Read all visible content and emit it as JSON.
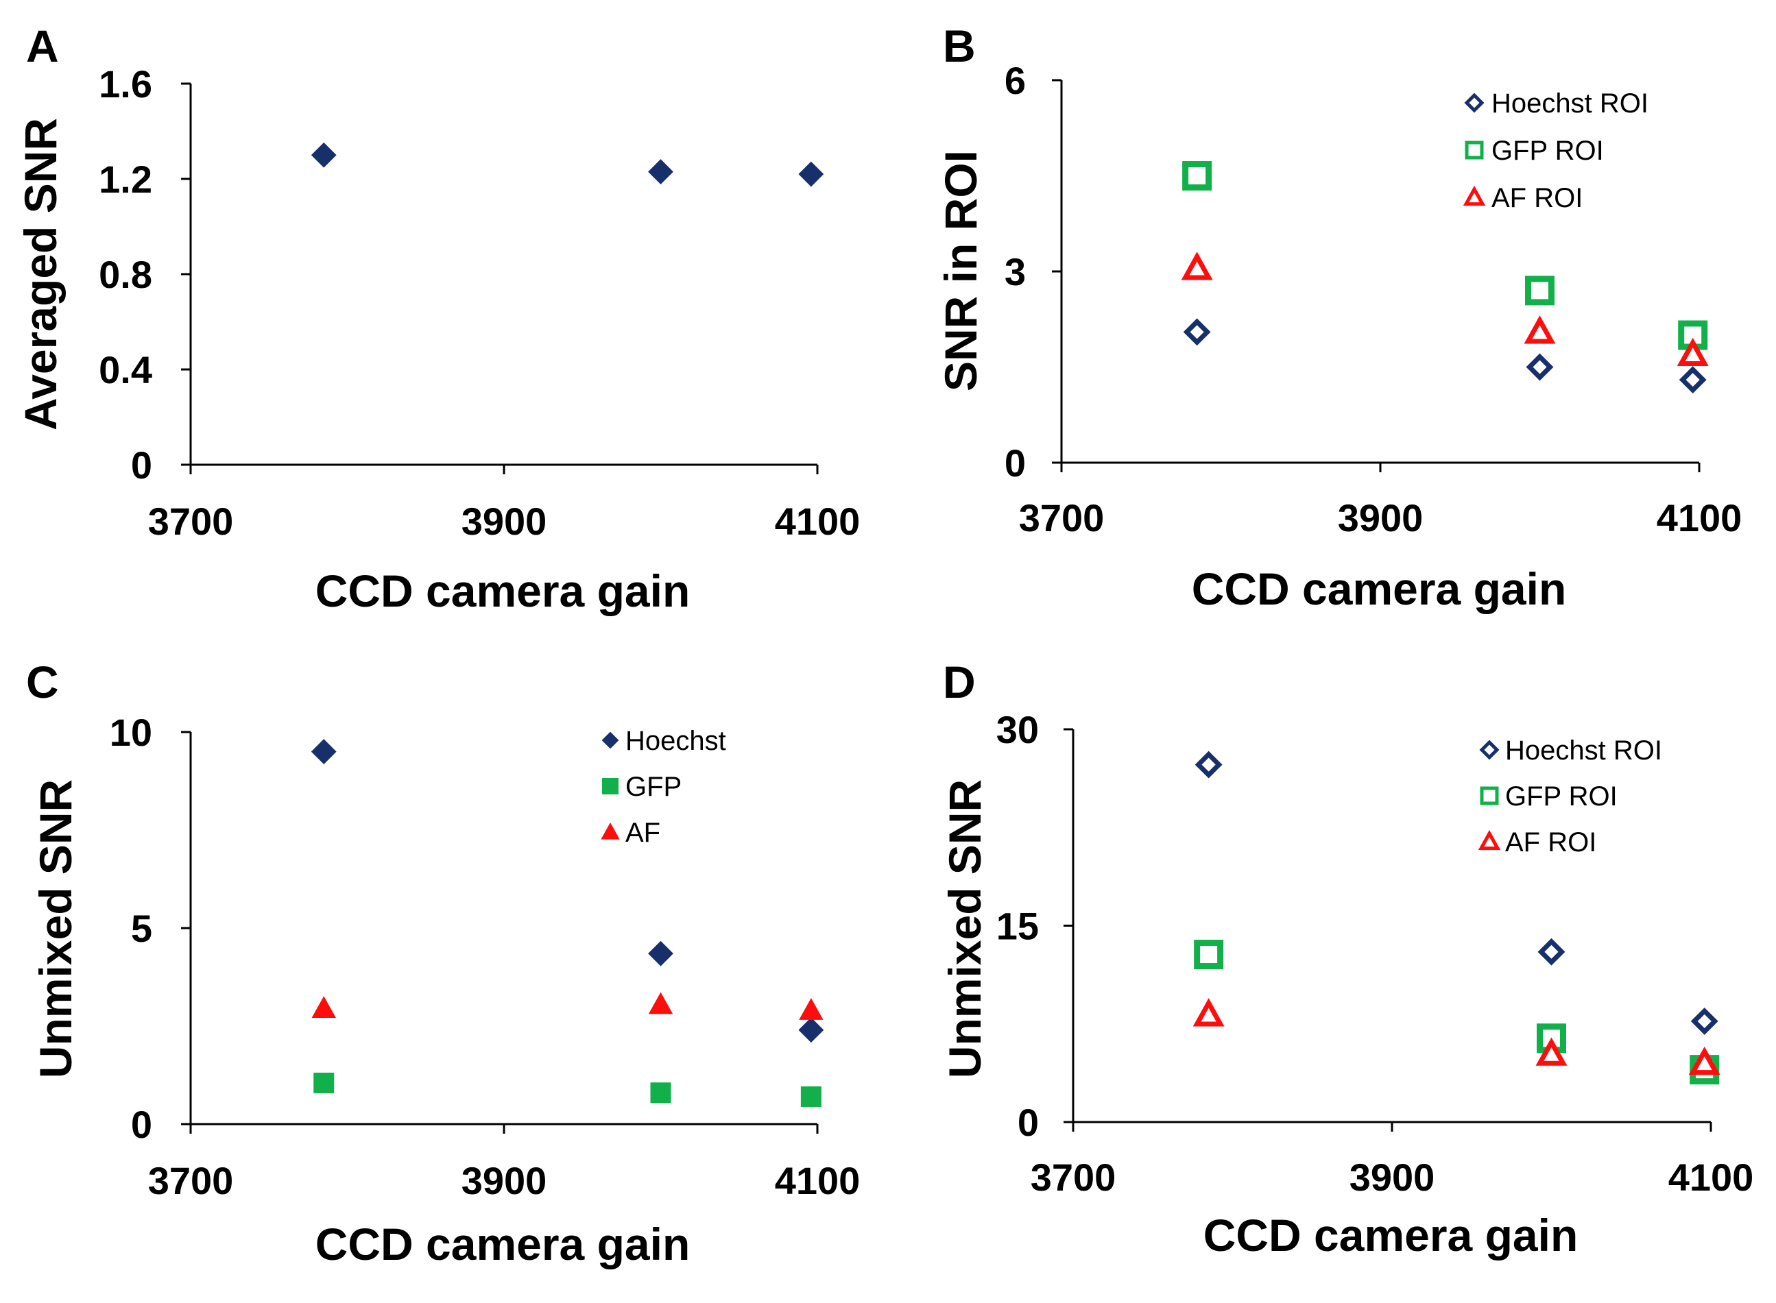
{
  "colors": {
    "hoechst": "#17306b",
    "gfp": "#12b04a",
    "af": "#ff0d0d",
    "axis": "#000000"
  },
  "chart_data": [
    {
      "type": "scatter",
      "panel": "A",
      "title": "",
      "xlabel": "CCD camera gain",
      "ylabel": "Averaged SNR",
      "xlim": [
        3700,
        4100
      ],
      "ylim": [
        0,
        1.6
      ],
      "xticks": [
        "3700",
        "3900",
        "4100"
      ],
      "yticks": [
        "0",
        "0.4",
        "0.8",
        "1.2",
        "1.6"
      ],
      "legend": "none",
      "series": [
        {
          "name": "Averaged SNR",
          "marker": "diamond-filled",
          "color": "#17306b",
          "x": [
            3785,
            4000,
            4096
          ],
          "y": [
            1.3,
            1.23,
            1.22
          ]
        }
      ]
    },
    {
      "type": "scatter",
      "panel": "B",
      "title": "",
      "xlabel": "CCD camera gain",
      "ylabel": "SNR in ROI",
      "xlim": [
        3700,
        4100
      ],
      "ylim": [
        0,
        6
      ],
      "xticks": [
        "3700",
        "3900",
        "4100"
      ],
      "yticks": [
        "0",
        "3",
        "6"
      ],
      "legend": "top-right",
      "series": [
        {
          "name": "Hoechst ROI",
          "marker": "diamond-open",
          "color": "#17306b",
          "x": [
            3785,
            4000,
            4096
          ],
          "y": [
            2.05,
            1.5,
            1.3
          ]
        },
        {
          "name": "GFP ROI",
          "marker": "square-open",
          "color": "#12b04a",
          "x": [
            3785,
            4000,
            4096
          ],
          "y": [
            4.5,
            2.7,
            2.0
          ]
        },
        {
          "name": "AF ROI",
          "marker": "triangle-open",
          "color": "#ff0d0d",
          "x": [
            3785,
            4000,
            4096
          ],
          "y": [
            3.05,
            2.05,
            1.7
          ]
        }
      ]
    },
    {
      "type": "scatter",
      "panel": "C",
      "title": "",
      "xlabel": "CCD camera gain",
      "ylabel": "Unmixed SNR",
      "xlim": [
        3700,
        4100
      ],
      "ylim": [
        0,
        10
      ],
      "xticks": [
        "3700",
        "3900",
        "4100"
      ],
      "yticks": [
        "0",
        "5",
        "10"
      ],
      "legend": "top-right",
      "series": [
        {
          "name": "Hoechst",
          "marker": "diamond-filled",
          "color": "#17306b",
          "x": [
            3785,
            4000,
            4096
          ],
          "y": [
            9.5,
            4.35,
            2.4
          ]
        },
        {
          "name": "GFP",
          "marker": "square-filled",
          "color": "#12b04a",
          "x": [
            3785,
            4000,
            4096
          ],
          "y": [
            1.05,
            0.8,
            0.7
          ]
        },
        {
          "name": "AF",
          "marker": "triangle-filled",
          "color": "#ff0d0d",
          "x": [
            3785,
            4000,
            4096
          ],
          "y": [
            2.95,
            3.05,
            2.9
          ]
        }
      ]
    },
    {
      "type": "scatter",
      "panel": "D",
      "title": "",
      "xlabel": "CCD camera gain",
      "ylabel": "Unmixed SNR",
      "xlim": [
        3700,
        4100
      ],
      "ylim": [
        0,
        30
      ],
      "xticks": [
        "3700",
        "3900",
        "4100"
      ],
      "yticks": [
        "0",
        "15",
        "30"
      ],
      "legend": "top-right",
      "series": [
        {
          "name": "Hoechst ROI",
          "marker": "diamond-open",
          "color": "#17306b",
          "x": [
            3785,
            4000,
            4096
          ],
          "y": [
            27.3,
            13.0,
            7.7
          ]
        },
        {
          "name": "GFP ROI",
          "marker": "square-open",
          "color": "#12b04a",
          "x": [
            3785,
            4000,
            4096
          ],
          "y": [
            12.8,
            6.4,
            4.0
          ]
        },
        {
          "name": "AF ROI",
          "marker": "triangle-open",
          "color": "#ff0d0d",
          "x": [
            3785,
            4000,
            4096
          ],
          "y": [
            8.2,
            5.2,
            4.5
          ]
        }
      ]
    }
  ]
}
